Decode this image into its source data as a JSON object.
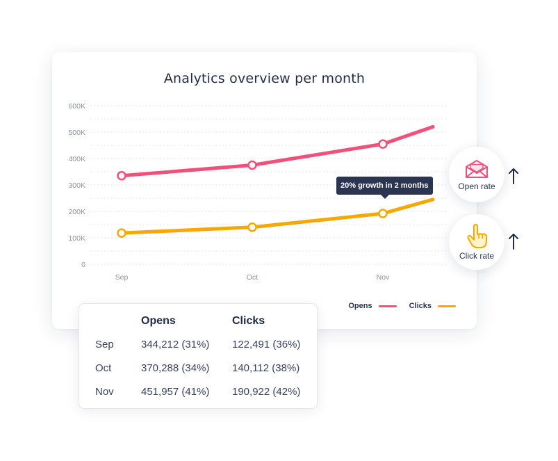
{
  "chart_data": {
    "type": "line",
    "title": "Analytics overview per month",
    "categories": [
      "Sep",
      "Oct",
      "Nov",
      ""
    ],
    "y_ticks": [
      "0",
      "100K",
      "200K",
      "300K",
      "400K",
      "500K",
      "600K"
    ],
    "ylim": [
      0,
      600000
    ],
    "grid": true,
    "legend_position": "bottom-right",
    "series": [
      {
        "name": "Opens",
        "color": "#f0507a",
        "values": [
          335000,
          375000,
          455000,
          520000
        ]
      },
      {
        "name": "Clicks",
        "color": "#f7a800",
        "values": [
          118000,
          140000,
          192000,
          245000
        ]
      }
    ],
    "annotation": "20% growth in 2 months"
  },
  "badges": {
    "open_rate": {
      "label": "Open rate",
      "icon": "envelope-icon",
      "color": "#f0507a"
    },
    "click_rate": {
      "label": "Click rate",
      "icon": "pointing-hand-icon",
      "color": "#f7a800"
    }
  },
  "table": {
    "headers": [
      "",
      "Opens",
      "Clicks"
    ],
    "rows": [
      [
        "Sep",
        "344,212 (31%)",
        "122,491 (36%)"
      ],
      [
        "Oct",
        "370,288 (34%)",
        "140,112 (38%)"
      ],
      [
        "Nov",
        "451,957 (41%)",
        "190,922 (42%)"
      ]
    ]
  }
}
